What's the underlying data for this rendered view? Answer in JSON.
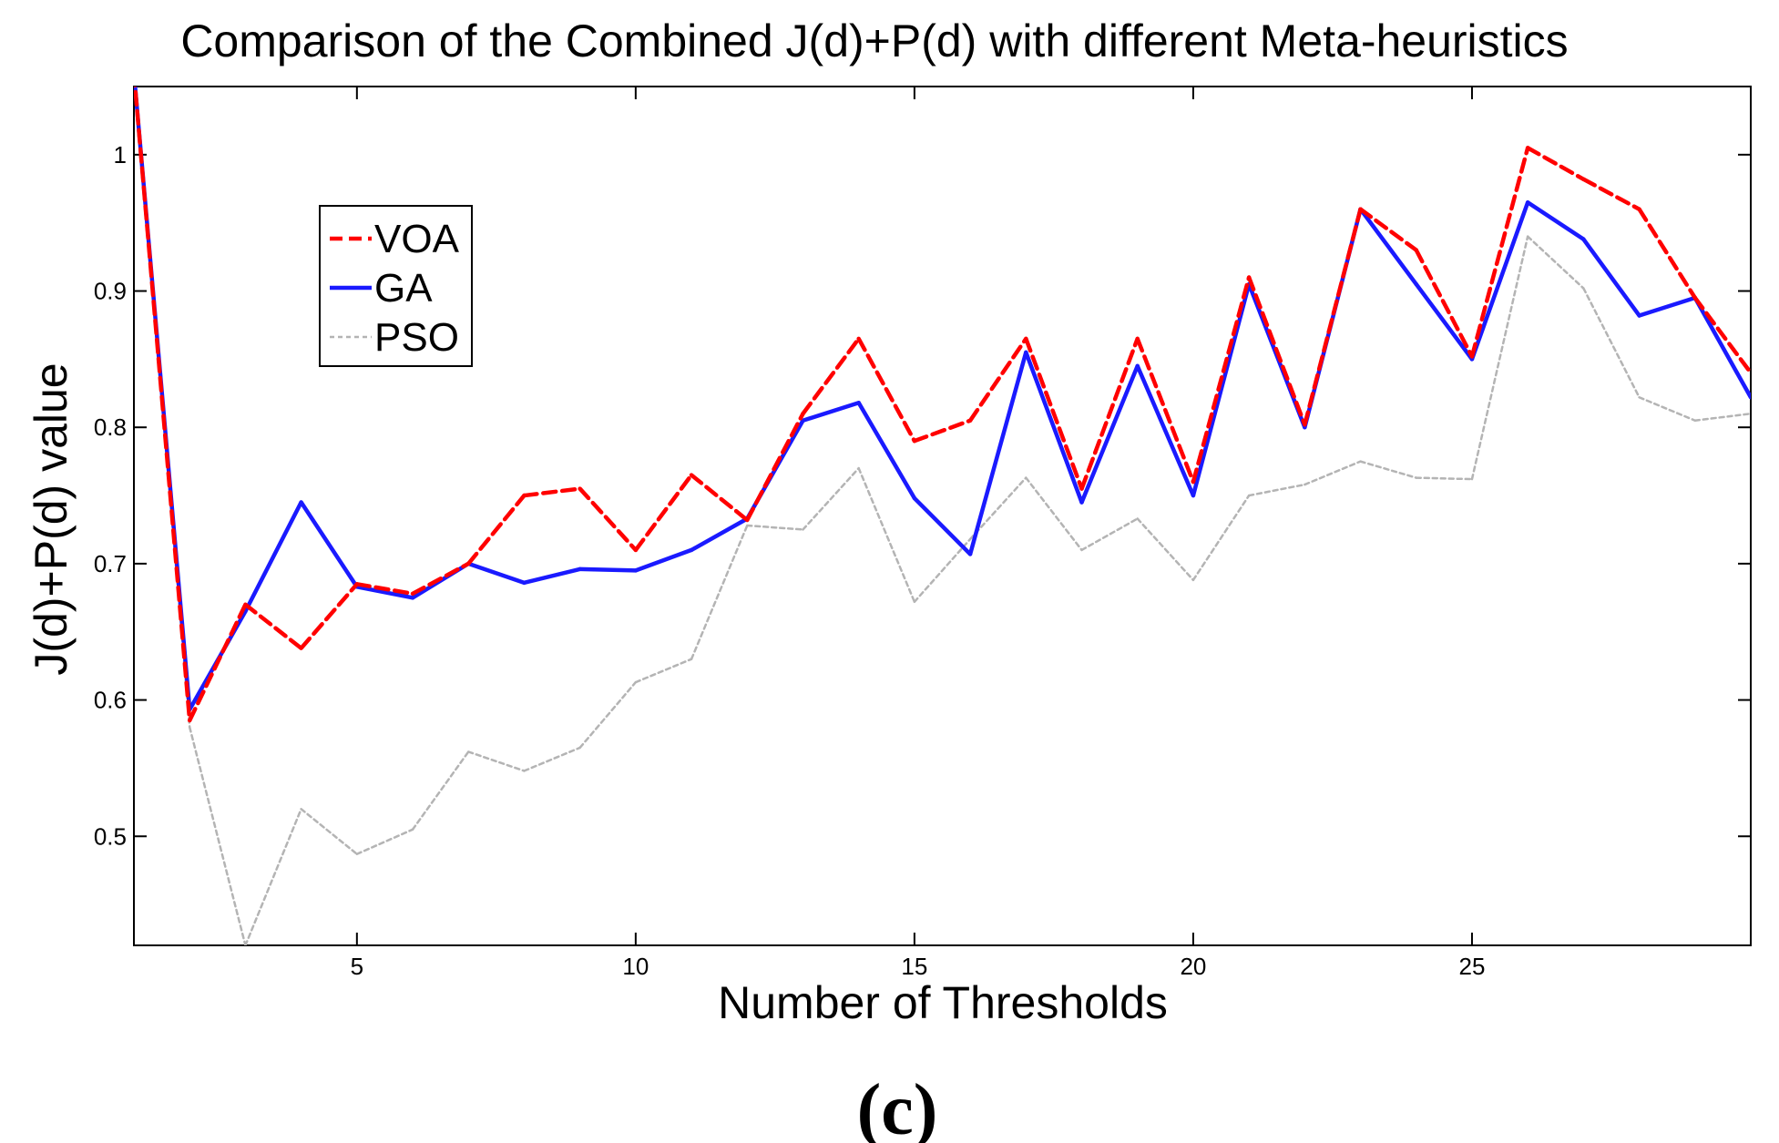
{
  "chart_data": {
    "type": "line",
    "title": "Comparison of the Combined J(d)+P(d) with different Meta-heuristics",
    "xlabel": "Number of Thresholds",
    "ylabel": "J(d)+P(d) value",
    "xlim": [
      1,
      30
    ],
    "ylim": [
      0.42,
      1.05
    ],
    "xticks": [
      5,
      10,
      15,
      20,
      25
    ],
    "yticks": [
      0.5,
      0.6,
      0.7,
      0.8,
      0.9,
      1
    ],
    "ytick_labels": [
      "0.5",
      "0.6",
      "0.7",
      "0.8",
      "0.9",
      "1"
    ],
    "grid": false,
    "legend_position": "upper-left",
    "x": [
      1,
      2,
      3,
      4,
      5,
      6,
      7,
      8,
      9,
      10,
      11,
      12,
      13,
      14,
      15,
      16,
      17,
      18,
      19,
      20,
      21,
      22,
      23,
      24,
      25,
      26,
      27,
      28,
      29,
      30
    ],
    "series": [
      {
        "name": "VOA",
        "color": "#ff0000",
        "dash": "dashed",
        "values": [
          1.06,
          0.585,
          0.67,
          0.638,
          0.685,
          0.678,
          0.7,
          0.75,
          0.755,
          0.71,
          0.765,
          0.732,
          0.81,
          0.865,
          0.79,
          0.805,
          0.865,
          0.755,
          0.865,
          0.76,
          0.91,
          0.802,
          0.96,
          0.93,
          0.852,
          1.005,
          0.982,
          0.96,
          0.895,
          0.84
        ]
      },
      {
        "name": "GA",
        "color": "#1a1aff",
        "dash": "solid",
        "values": [
          1.06,
          0.593,
          0.665,
          0.745,
          0.683,
          0.675,
          0.7,
          0.686,
          0.696,
          0.695,
          0.71,
          0.733,
          0.805,
          0.818,
          0.748,
          0.707,
          0.855,
          0.745,
          0.845,
          0.75,
          0.905,
          0.8,
          0.96,
          0.905,
          0.85,
          0.965,
          0.938,
          0.882,
          0.895,
          0.822
        ]
      },
      {
        "name": "PSO",
        "color": "#b4b4b4",
        "dash": "dotted",
        "values": [
          1.06,
          0.58,
          0.42,
          0.52,
          0.487,
          0.505,
          0.562,
          0.548,
          0.565,
          0.613,
          0.63,
          0.728,
          0.725,
          0.77,
          0.672,
          0.718,
          0.763,
          0.71,
          0.733,
          0.688,
          0.75,
          0.758,
          0.775,
          0.763,
          0.762,
          0.94,
          0.902,
          0.822,
          0.805,
          0.81
        ]
      }
    ],
    "caption": "(c)"
  }
}
